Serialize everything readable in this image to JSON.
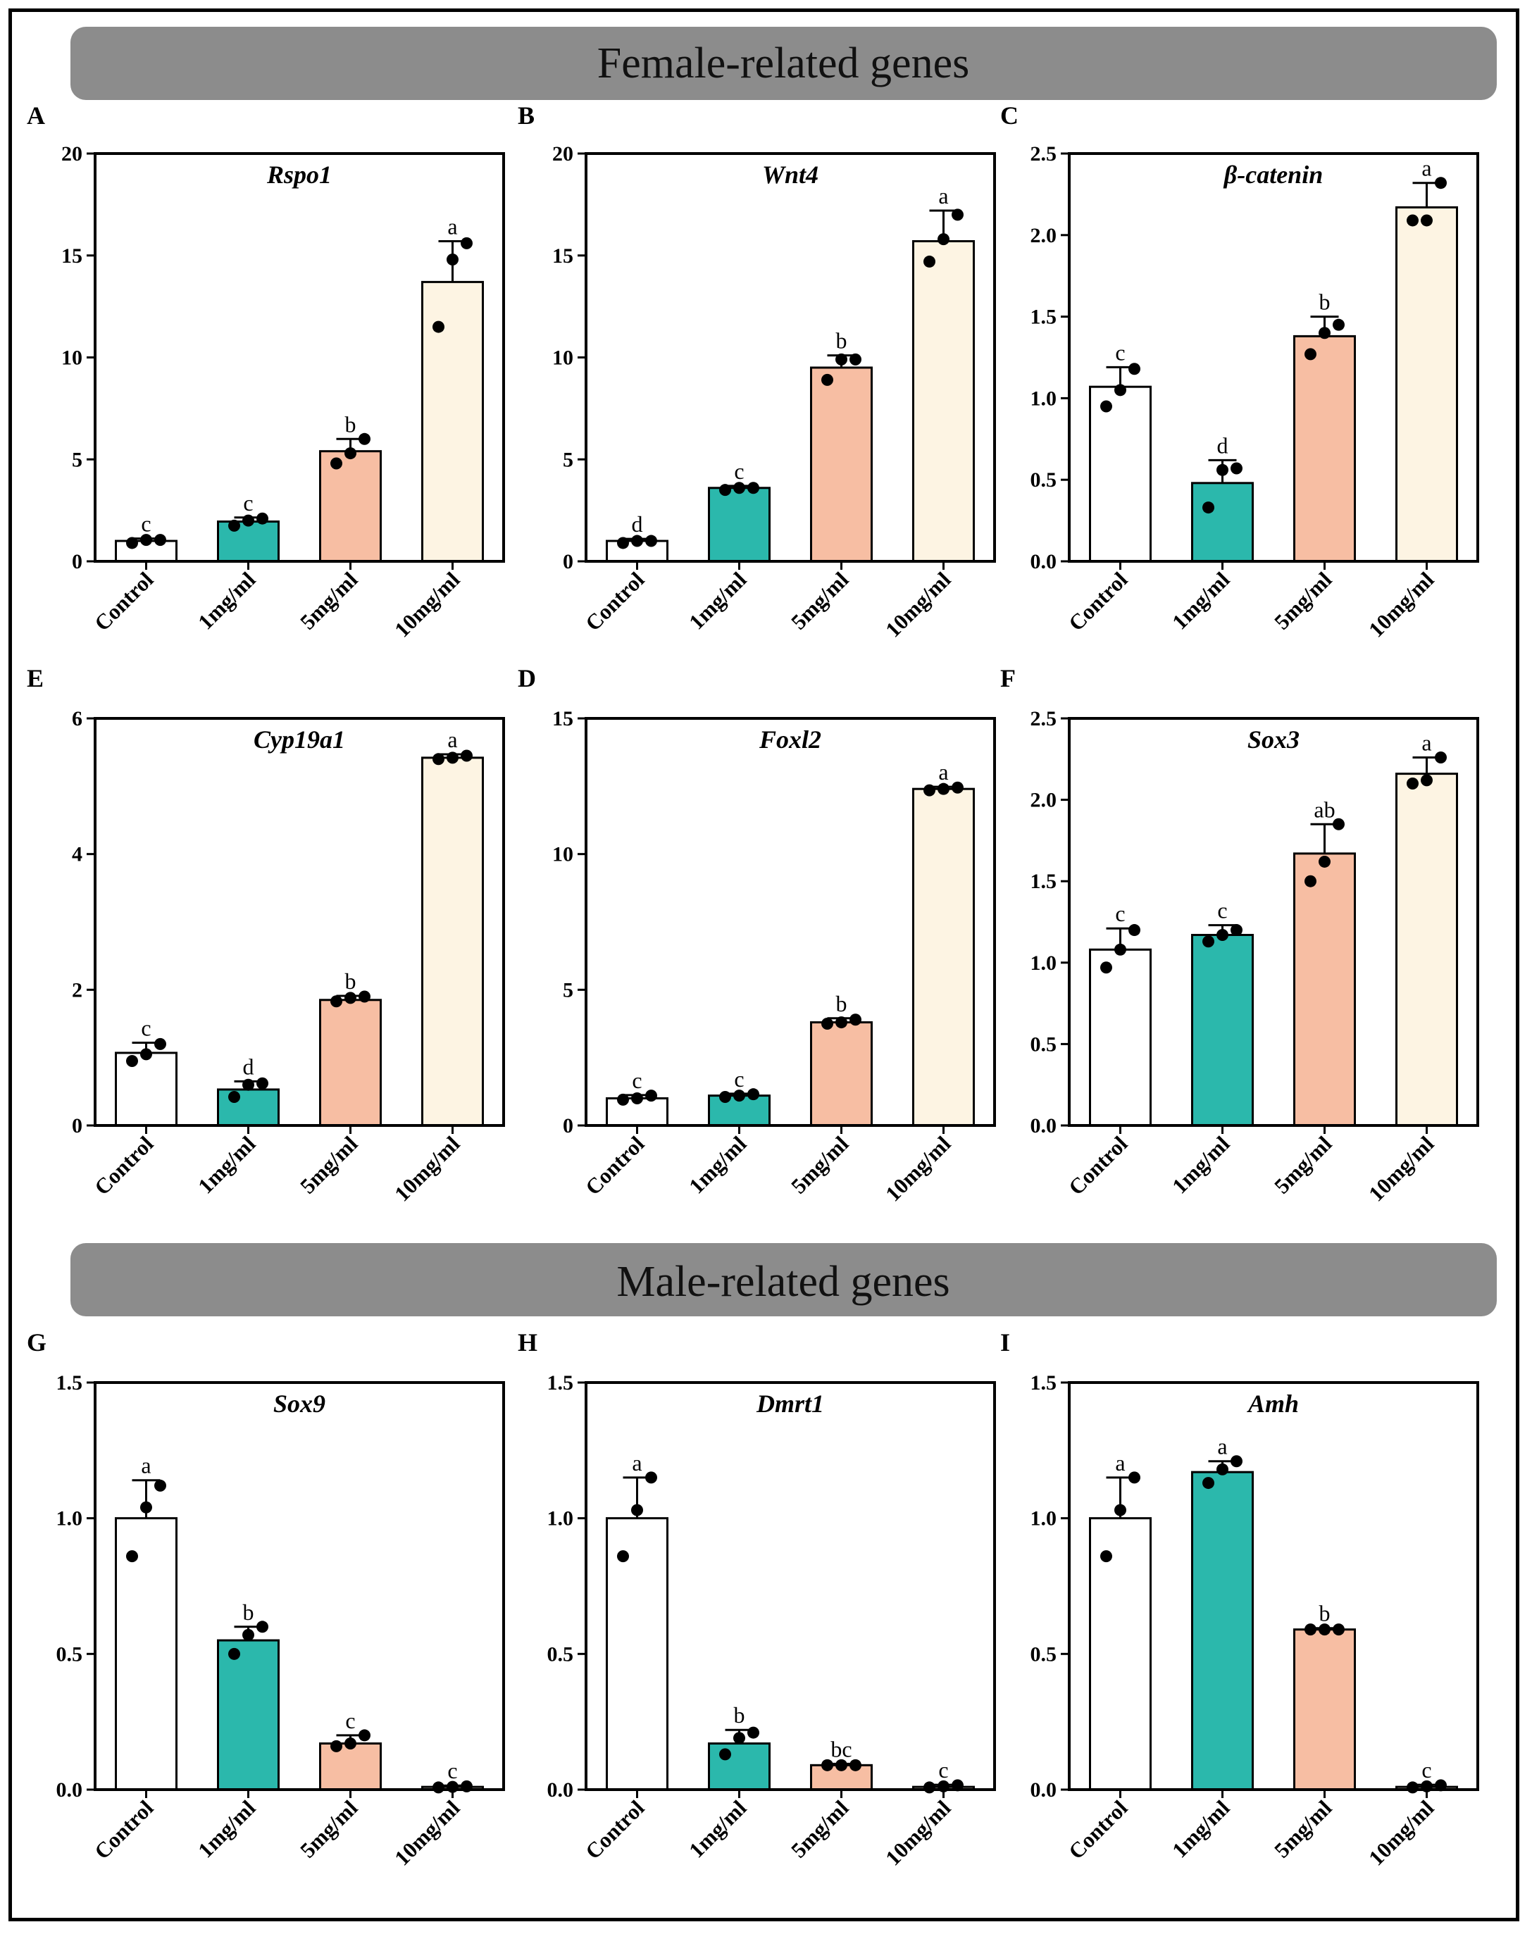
{
  "banners": {
    "female": "Female-related genes",
    "male": "Male-related genes"
  },
  "colors": {
    "control": "#ffffff",
    "1mg": "#2bb8ac",
    "5mg": "#f7bea3",
    "10mg": "#fdf4e3",
    "banner": "#8c8c8c",
    "axis": "#000000"
  },
  "chart_data": [
    {
      "type": "bar",
      "panel": "A",
      "title": "Rspo1",
      "categories": [
        "Control",
        "1mg/ml",
        "5mg/ml",
        "10mg/ml"
      ],
      "values": [
        1.0,
        1.95,
        5.4,
        13.7
      ],
      "errors": [
        0.12,
        0.2,
        0.6,
        2.0
      ],
      "points": [
        [
          0.9,
          1.05,
          1.05
        ],
        [
          1.75,
          2.0,
          2.1
        ],
        [
          4.8,
          5.3,
          6.0
        ],
        [
          11.5,
          14.8,
          15.6
        ]
      ],
      "labels": [
        "c",
        "c",
        "b",
        "a"
      ],
      "ylim": [
        0,
        20
      ],
      "yticks": [
        0,
        5,
        10,
        15,
        20
      ],
      "ytick_labels": [
        "0",
        "5",
        "10",
        "15",
        "20"
      ]
    },
    {
      "type": "bar",
      "panel": "B",
      "title": "Wnt4",
      "categories": [
        "Control",
        "1mg/ml",
        "5mg/ml",
        "10mg/ml"
      ],
      "values": [
        1.0,
        3.6,
        9.5,
        15.7
      ],
      "errors": [
        0.1,
        0.1,
        0.6,
        1.5
      ],
      "points": [
        [
          0.9,
          1.0,
          1.0
        ],
        [
          3.5,
          3.6,
          3.6
        ],
        [
          8.9,
          9.9,
          9.9
        ],
        [
          14.7,
          15.8,
          17.0
        ]
      ],
      "labels": [
        "d",
        "c",
        "b",
        "a"
      ],
      "ylim": [
        0,
        20
      ],
      "yticks": [
        0,
        5,
        10,
        15,
        20
      ],
      "ytick_labels": [
        "0",
        "5",
        "10",
        "15",
        "20"
      ]
    },
    {
      "type": "bar",
      "panel": "C",
      "title": "β-catenin",
      "categories": [
        "Control",
        "1mg/ml",
        "5mg/ml",
        "10mg/ml"
      ],
      "values": [
        1.07,
        0.48,
        1.38,
        2.17
      ],
      "errors": [
        0.12,
        0.14,
        0.12,
        0.15
      ],
      "points": [
        [
          0.95,
          1.05,
          1.18
        ],
        [
          0.33,
          0.56,
          0.57
        ],
        [
          1.27,
          1.4,
          1.45
        ],
        [
          2.09,
          2.09,
          2.32
        ]
      ],
      "labels": [
        "c",
        "d",
        "b",
        "a"
      ],
      "ylim": [
        0,
        2.5
      ],
      "yticks": [
        0,
        0.5,
        1.0,
        1.5,
        2.0,
        2.5
      ],
      "ytick_labels": [
        "0.0",
        "0.5",
        "1.0",
        "1.5",
        "2.0",
        "2.5"
      ]
    },
    {
      "type": "bar",
      "panel": "E",
      "title": "Cyp19a1",
      "categories": [
        "Control",
        "1mg/ml",
        "5mg/ml",
        "10mg/ml"
      ],
      "values": [
        1.07,
        0.53,
        1.85,
        5.42
      ],
      "errors": [
        0.15,
        0.12,
        0.06,
        0.05
      ],
      "points": [
        [
          0.95,
          1.05,
          1.2
        ],
        [
          0.42,
          0.6,
          0.62
        ],
        [
          1.83,
          1.88,
          1.9
        ],
        [
          5.4,
          5.42,
          5.45
        ]
      ],
      "labels": [
        "c",
        "d",
        "b",
        "a"
      ],
      "ylim": [
        0,
        6
      ],
      "yticks": [
        0,
        2,
        4,
        6
      ],
      "ytick_labels": [
        "0",
        "2",
        "4",
        "6"
      ]
    },
    {
      "type": "bar",
      "panel": "D",
      "title": "Foxl2",
      "categories": [
        "Control",
        "1mg/ml",
        "5mg/ml",
        "10mg/ml"
      ],
      "values": [
        1.0,
        1.1,
        3.8,
        12.4
      ],
      "errors": [
        0.12,
        0.07,
        0.15,
        0.08
      ],
      "points": [
        [
          0.95,
          1.0,
          1.1
        ],
        [
          1.05,
          1.1,
          1.15
        ],
        [
          3.75,
          3.8,
          3.9
        ],
        [
          12.35,
          12.4,
          12.45
        ]
      ],
      "labels": [
        "c",
        "c",
        "b",
        "a"
      ],
      "ylim": [
        0,
        15
      ],
      "yticks": [
        0,
        5,
        10,
        15
      ],
      "ytick_labels": [
        "0",
        "5",
        "10",
        "15"
      ]
    },
    {
      "type": "bar",
      "panel": "F",
      "title": "Sox3",
      "categories": [
        "Control",
        "1mg/ml",
        "5mg/ml",
        "10mg/ml"
      ],
      "values": [
        1.08,
        1.17,
        1.67,
        2.16
      ],
      "errors": [
        0.13,
        0.06,
        0.18,
        0.1
      ],
      "points": [
        [
          0.97,
          1.08,
          1.2
        ],
        [
          1.13,
          1.17,
          1.2
        ],
        [
          1.5,
          1.62,
          1.85
        ],
        [
          2.1,
          2.12,
          2.26
        ]
      ],
      "labels": [
        "c",
        "c",
        "ab",
        "a"
      ],
      "ylim": [
        0,
        2.5
      ],
      "yticks": [
        0,
        0.5,
        1.0,
        1.5,
        2.0,
        2.5
      ],
      "ytick_labels": [
        "0.0",
        "0.5",
        "1.0",
        "1.5",
        "2.0",
        "2.5"
      ]
    },
    {
      "type": "bar",
      "panel": "G",
      "title": "Sox9",
      "categories": [
        "Control",
        "1mg/ml",
        "5mg/ml",
        "10mg/ml"
      ],
      "values": [
        1.0,
        0.55,
        0.17,
        0.01
      ],
      "errors": [
        0.14,
        0.05,
        0.03,
        0.005
      ],
      "points": [
        [
          0.86,
          1.04,
          1.12
        ],
        [
          0.5,
          0.57,
          0.6
        ],
        [
          0.16,
          0.17,
          0.2
        ],
        [
          0.008,
          0.01,
          0.012
        ]
      ],
      "labels": [
        "a",
        "b",
        "c",
        "c"
      ],
      "ylim": [
        0,
        1.5
      ],
      "yticks": [
        0,
        0.5,
        1.0,
        1.5
      ],
      "ytick_labels": [
        "0.0",
        "0.5",
        "1.0",
        "1.5"
      ]
    },
    {
      "type": "bar",
      "panel": "H",
      "title": "Dmrt1",
      "categories": [
        "Control",
        "1mg/ml",
        "5mg/ml",
        "10mg/ml"
      ],
      "values": [
        1.0,
        0.17,
        0.09,
        0.01
      ],
      "errors": [
        0.15,
        0.05,
        0.005,
        0.008
      ],
      "points": [
        [
          0.86,
          1.03,
          1.15
        ],
        [
          0.13,
          0.19,
          0.21
        ],
        [
          0.09,
          0.09,
          0.09
        ],
        [
          0.008,
          0.012,
          0.016
        ]
      ],
      "labels": [
        "a",
        "b",
        "bc",
        "c"
      ],
      "ylim": [
        0,
        1.5
      ],
      "yticks": [
        0,
        0.5,
        1.0,
        1.5
      ],
      "ytick_labels": [
        "0.0",
        "0.5",
        "1.0",
        "1.5"
      ]
    },
    {
      "type": "bar",
      "panel": "I",
      "title": "Amh",
      "categories": [
        "Control",
        "1mg/ml",
        "5mg/ml",
        "10mg/ml"
      ],
      "values": [
        1.0,
        1.17,
        0.59,
        0.01
      ],
      "errors": [
        0.15,
        0.04,
        0.005,
        0.008
      ],
      "points": [
        [
          0.86,
          1.03,
          1.15
        ],
        [
          1.13,
          1.18,
          1.21
        ],
        [
          0.59,
          0.59,
          0.59
        ],
        [
          0.008,
          0.012,
          0.016
        ]
      ],
      "labels": [
        "a",
        "a",
        "b",
        "c"
      ],
      "ylim": [
        0,
        1.5
      ],
      "yticks": [
        0,
        0.5,
        1.0,
        1.5
      ],
      "ytick_labels": [
        "0.0",
        "0.5",
        "1.0",
        "1.5"
      ]
    }
  ]
}
